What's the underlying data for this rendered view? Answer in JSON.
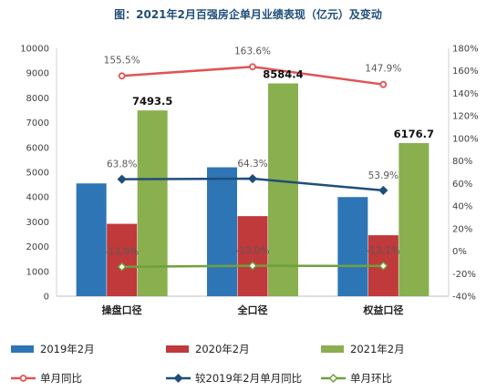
{
  "chart_data": {
    "type": "bar",
    "title": "图：2021年2月百强房企单月业绩表现（亿元）及变动",
    "categories": [
      "操盘口径",
      "全口径",
      "权益口径"
    ],
    "series": [
      {
        "name": "2019年2月",
        "kind": "bar",
        "axis": "left",
        "color": "#2e75b6",
        "values": [
          4550,
          5200,
          4000
        ]
      },
      {
        "name": "2020年2月",
        "kind": "bar",
        "axis": "left",
        "color": "#c0393b",
        "values": [
          2920,
          3230,
          2460
        ]
      },
      {
        "name": "2021年2月",
        "kind": "bar",
        "axis": "left",
        "color": "#8aaf4f",
        "values": [
          7493.5,
          8584.4,
          6176.7
        ],
        "labels": [
          "7493.5",
          "8584.4",
          "6176.7"
        ]
      },
      {
        "name": "单月同比",
        "kind": "line",
        "axis": "right",
        "color": "#e05454",
        "values": [
          155.5,
          163.6,
          147.9
        ],
        "labels": [
          "155.5%",
          "163.6%",
          "147.9%"
        ]
      },
      {
        "name": "较2019年2月单月同比",
        "kind": "line",
        "axis": "right",
        "color": "#1f4e79",
        "values": [
          63.8,
          64.3,
          53.9
        ],
        "labels": [
          "63.8%",
          "64.3%",
          "53.9%"
        ]
      },
      {
        "name": "单月环比",
        "kind": "line",
        "axis": "right",
        "color": "#70a03c",
        "values": [
          -13.9,
          -13.0,
          -13.1
        ],
        "labels": [
          "-13.9%",
          "-13.0%",
          "-13.1%"
        ]
      }
    ],
    "y_left": {
      "min": 0,
      "max": 10000,
      "step": 1000,
      "ticks": [
        "0",
        "1000",
        "2000",
        "3000",
        "4000",
        "5000",
        "6000",
        "7000",
        "8000",
        "9000",
        "10000"
      ]
    },
    "y_right": {
      "min": -40,
      "max": 180,
      "step": 20,
      "ticks": [
        "-40%",
        "-20%",
        "0%",
        "20%",
        "40%",
        "60%",
        "80%",
        "100%",
        "120%",
        "140%",
        "160%",
        "180%"
      ]
    },
    "grid": false,
    "legend_position": "bottom"
  }
}
